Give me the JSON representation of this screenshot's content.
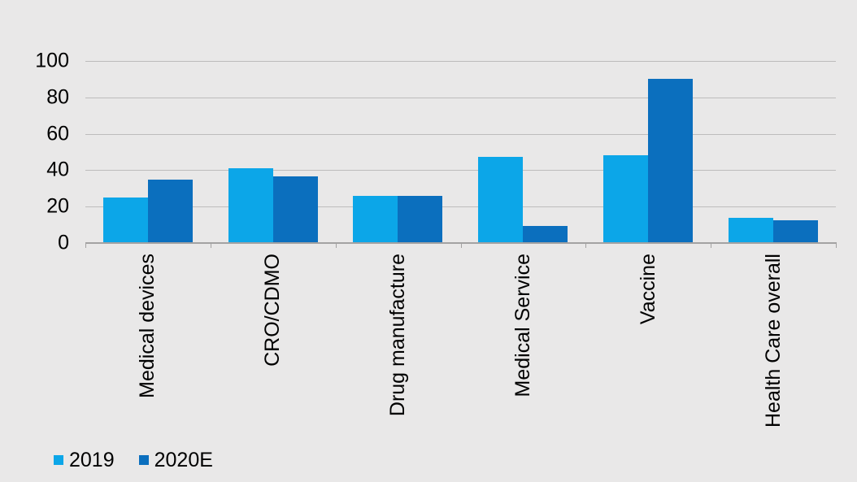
{
  "chart_data": {
    "type": "bar",
    "title": "",
    "xlabel": "",
    "ylabel": "",
    "categories": [
      "Medical devices",
      "CRO/CDMO",
      "Drug manufacture",
      "Medical Service",
      "Vaccine",
      "Health Care overall"
    ],
    "series": [
      {
        "name": "2019",
        "color": "#0ca6e8",
        "values": [
          25,
          41,
          26,
          47.5,
          48,
          14
        ]
      },
      {
        "name": "2020E",
        "color": "#0b6fbe",
        "values": [
          35,
          36.5,
          26,
          9.5,
          90,
          12.5
        ]
      }
    ],
    "ylim": [
      0,
      100
    ],
    "yticks": [
      0,
      20,
      40,
      60,
      80,
      100
    ],
    "grid": true,
    "legend_position": "bottom-left"
  },
  "style_colors": {
    "background": "#e9e8e8",
    "gridline": "#bdbcbc",
    "axis": "#a3a2a2",
    "text": "#000000"
  }
}
